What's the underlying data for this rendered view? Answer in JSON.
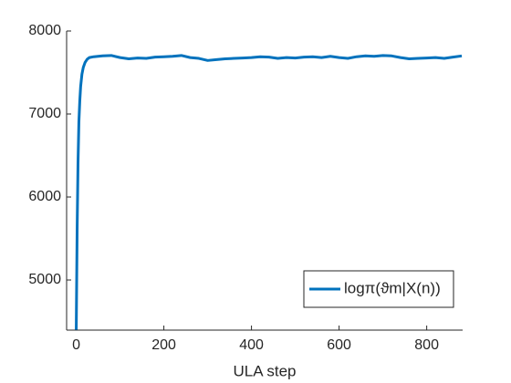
{
  "chart_data": {
    "type": "line",
    "xlabel": "ULA step",
    "x": [
      0,
      2,
      4,
      6,
      8,
      10,
      13,
      16,
      20,
      25,
      30,
      40,
      50,
      60,
      80,
      100,
      120,
      140,
      160,
      180,
      200,
      220,
      240,
      260,
      280,
      300,
      320,
      340,
      360,
      380,
      400,
      420,
      440,
      460,
      480,
      500,
      520,
      540,
      560,
      580,
      600,
      620,
      640,
      660,
      680,
      700,
      720,
      740,
      760,
      780,
      800,
      820,
      840,
      860,
      880
    ],
    "series": [
      {
        "name": "logπ(ϑm|X(n))",
        "color": "#0072BD",
        "values": [
          4400,
          5600,
          6400,
          6900,
          7150,
          7330,
          7480,
          7560,
          7620,
          7660,
          7680,
          7690,
          7695,
          7700,
          7705,
          7680,
          7665,
          7675,
          7670,
          7685,
          7690,
          7695,
          7705,
          7680,
          7670,
          7645,
          7655,
          7665,
          7670,
          7675,
          7680,
          7690,
          7685,
          7670,
          7680,
          7675,
          7685,
          7690,
          7680,
          7695,
          7680,
          7670,
          7690,
          7700,
          7695,
          7705,
          7700,
          7680,
          7665,
          7670,
          7675,
          7680,
          7670,
          7685,
          7700
        ]
      }
    ],
    "xlim": [
      -22,
      882
    ],
    "ylim": [
      4396,
      8000
    ],
    "xticks": [
      0,
      200,
      400,
      600,
      800
    ],
    "yticks": [
      5000,
      6000,
      7000,
      8000
    ],
    "legend": "southeast"
  }
}
